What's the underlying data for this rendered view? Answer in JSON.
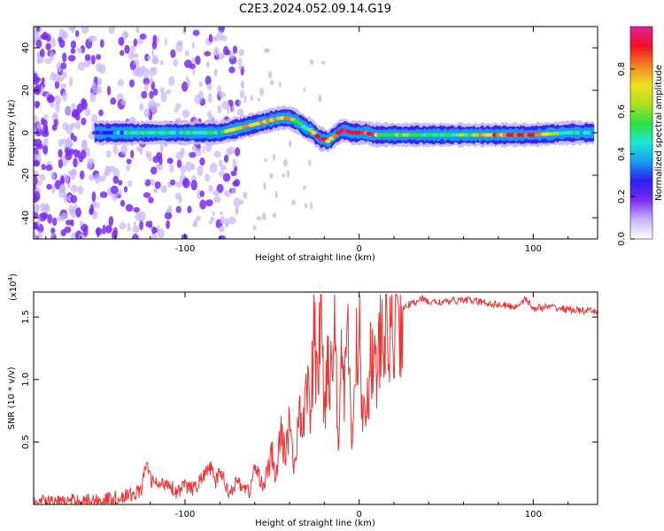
{
  "title": "C2E3.2024.052.09.14.G19",
  "colors": {
    "snr_line": "#ee3333",
    "colormap": [
      "#ffffff",
      "#c8b4f8",
      "#7a2cf0",
      "#2a1ff0",
      "#1a9cf0",
      "#1ee8d8",
      "#30e040",
      "#b0e020",
      "#f0e020",
      "#f08020",
      "#f01020",
      "#e020a0"
    ]
  },
  "chart_data": [
    {
      "type": "heatmap",
      "title": "C2E3.2024.052.09.14.G19",
      "xlabel": "Height of straight line (km)",
      "ylabel": "Frequency (Hz)",
      "xlim": [
        -187,
        137
      ],
      "ylim": [
        -50,
        50
      ],
      "x_ticks": [
        -100,
        0,
        100
      ],
      "x_tick_labels": [
        "-100",
        "0",
        "100"
      ],
      "y_ticks": [
        -40,
        -20,
        0,
        20,
        40
      ],
      "y_tick_labels": [
        "-40",
        "-20",
        "0",
        "20",
        "40"
      ],
      "colorbar": {
        "label": "Normalized spectral amplitude",
        "range": [
          0,
          1
        ],
        "ticks": [
          0.0,
          0.2,
          0.4,
          0.6,
          0.8
        ],
        "tick_labels": [
          "0.0",
          "0.2",
          "0.4",
          "0.6",
          "0.8"
        ]
      },
      "ridge": {
        "x": [
          -152,
          -140,
          -130,
          -120,
          -110,
          -100,
          -90,
          -80,
          -75,
          -70,
          -65,
          -60,
          -55,
          -50,
          -45,
          -40,
          -35,
          -32,
          -30,
          -27,
          -25,
          -22,
          -20,
          -18,
          -15,
          -12,
          -10,
          -7,
          -5,
          0,
          5,
          8,
          12,
          20,
          40,
          60,
          80,
          100,
          120,
          135
        ],
        "freq": [
          0,
          0,
          0,
          0,
          0,
          0,
          0,
          0,
          1,
          2,
          3,
          4,
          5,
          6,
          7,
          7,
          5,
          3,
          2,
          1,
          -1,
          -3,
          -3,
          -4,
          -2,
          0,
          1,
          1,
          0,
          0,
          0,
          -1,
          -1,
          -1,
          -1,
          -1,
          -1,
          -1,
          0,
          0
        ],
        "amplitude": [
          0.3,
          0.35,
          0.45,
          0.5,
          0.45,
          0.5,
          0.45,
          0.5,
          0.8,
          0.6,
          0.85,
          0.7,
          0.8,
          0.75,
          0.7,
          0.85,
          0.55,
          0.45,
          0.5,
          0.6,
          0.75,
          0.9,
          0.85,
          0.7,
          0.8,
          0.95,
          0.95,
          0.9,
          0.95,
          1.0,
          0.9,
          0.9,
          0.55,
          0.6,
          0.5,
          0.55,
          0.85,
          0.9,
          0.5,
          0.45
        ]
      },
      "grid": false
    },
    {
      "type": "line",
      "xlabel": "Height of straight line (km)",
      "ylabel": "SNR (10 * v/v)",
      "y_multiplier_label": "(x10",
      "y_multiplier_exp": "4",
      "y_multiplier_close": ")",
      "xlim": [
        -187,
        137
      ],
      "ylim": [
        0,
        1.7
      ],
      "x_ticks": [
        -100,
        0,
        100
      ],
      "x_tick_labels": [
        "-100",
        "0",
        "100"
      ],
      "y_ticks": [
        0.5,
        1.0,
        1.5
      ],
      "y_tick_labels": [
        "0.5",
        "1.0",
        "1.5"
      ],
      "series": [
        {
          "x": [
            -187,
            -170,
            -160,
            -150,
            -140,
            -130,
            -125,
            -122,
            -120,
            -115,
            -110,
            -105,
            -100,
            -95,
            -90,
            -85,
            -83,
            -80,
            -75,
            -70,
            -67,
            -63,
            -60,
            -55,
            -50,
            -48,
            -45,
            -42,
            -40,
            -37,
            -35,
            -33,
            -30,
            -28,
            -26,
            -24,
            -22,
            -20,
            -18,
            -16,
            -14,
            -12,
            -10,
            -8,
            -6,
            -4,
            -2,
            0,
            2,
            5,
            8,
            10,
            12,
            15,
            20,
            25,
            28,
            30,
            35,
            40,
            50,
            60,
            70,
            80,
            90,
            95,
            100,
            110,
            120,
            130,
            137
          ],
          "y": [
            0.02,
            0.02,
            0.03,
            0.03,
            0.05,
            0.08,
            0.12,
            0.35,
            0.2,
            0.15,
            0.18,
            0.1,
            0.15,
            0.12,
            0.22,
            0.3,
            0.15,
            0.28,
            0.1,
            0.18,
            0.15,
            0.1,
            0.3,
            0.15,
            0.4,
            0.2,
            0.55,
            0.4,
            0.7,
            0.25,
            0.8,
            0.5,
            1.1,
            0.6,
            1.4,
            0.9,
            1.65,
            0.7,
            1.3,
            1.0,
            1.5,
            0.6,
            1.2,
            0.9,
            1.35,
            0.4,
            1.1,
            1.5,
            0.7,
            1.0,
            1.2,
            1.0,
            1.3,
            1.35,
            1.45,
            1.55,
            1.6,
            1.6,
            1.65,
            1.62,
            1.62,
            1.64,
            1.62,
            1.6,
            1.58,
            1.65,
            1.57,
            1.58,
            1.56,
            1.55,
            1.54
          ]
        }
      ]
    }
  ]
}
